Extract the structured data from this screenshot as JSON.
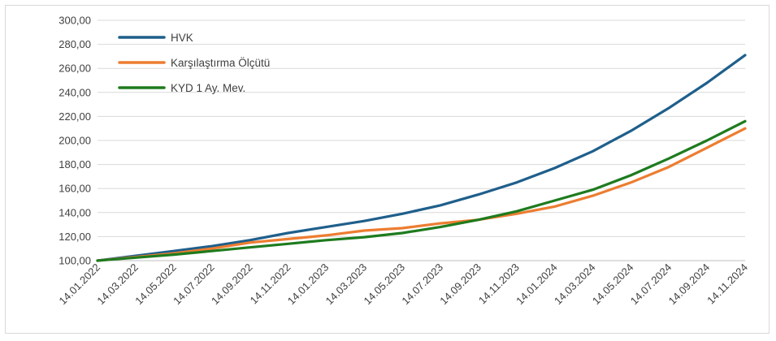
{
  "chart_data": {
    "type": "line",
    "title": "",
    "xlabel": "",
    "ylabel": "",
    "ylim": [
      100,
      300
    ],
    "y_ticks": [
      "100,00",
      "120,00",
      "140,00",
      "160,00",
      "180,00",
      "200,00",
      "220,00",
      "240,00",
      "260,00",
      "280,00",
      "300,00"
    ],
    "x_tick_labels": [
      "14.01.2022",
      "14.03.2022",
      "14.05.2022",
      "14.07.2022",
      "14.09.2022",
      "14.11.2022",
      "14.01.2023",
      "14.03.2023",
      "14.05.2023",
      "14.07.2023",
      "14.09.2023",
      "14.11.2023",
      "14.01.2024",
      "14.03.2024",
      "14.05.2024",
      "14.07.2024",
      "14.09.2024",
      "14.11.2024"
    ],
    "grid": "horizontal",
    "legend_position": "top-left",
    "x": [
      "14.01.2022",
      "14.03.2022",
      "14.05.2022",
      "14.07.2022",
      "14.09.2022",
      "14.11.2022",
      "14.01.2023",
      "14.03.2023",
      "14.05.2023",
      "14.07.2023",
      "14.09.2023",
      "14.11.2023",
      "14.01.2024",
      "14.03.2024",
      "14.05.2024",
      "14.07.2024",
      "14.09.2024",
      "14.11.2024"
    ],
    "series": [
      {
        "name": "HVK",
        "color": "#1f5f8b",
        "values": [
          100,
          104,
          108,
          112,
          117,
          123,
          128,
          133,
          139,
          146,
          155,
          165,
          177,
          191,
          208,
          227,
          248,
          271
        ]
      },
      {
        "name": "Karşılaştırma Ölçütü",
        "color": "#ed7d31",
        "values": [
          100,
          103,
          106,
          110,
          115,
          118,
          121,
          125,
          127,
          131,
          134,
          139,
          145,
          154,
          165,
          178,
          194,
          210
        ]
      },
      {
        "name": "KYD 1 Ay. Mev.",
        "color": "#1e7b1e",
        "values": [
          100,
          102.5,
          105,
          108,
          111,
          114,
          117,
          119.5,
          123,
          128,
          134,
          141,
          150,
          159,
          171,
          185,
          200,
          216
        ]
      }
    ]
  }
}
